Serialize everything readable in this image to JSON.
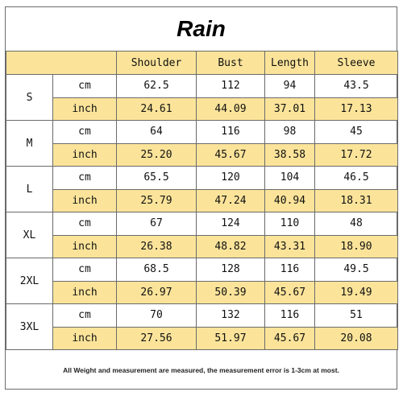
{
  "title": "Rain",
  "headers": [
    "Shoulder",
    "Bust",
    "Length",
    "Sleeve"
  ],
  "rows": [
    {
      "size": "S",
      "cm": [
        "62.5",
        "112",
        "94",
        "43.5"
      ],
      "inch": [
        "24.61",
        "44.09",
        "37.01",
        "17.13"
      ]
    },
    {
      "size": "M",
      "cm": [
        "64",
        "116",
        "98",
        "45"
      ],
      "inch": [
        "25.20",
        "45.67",
        "38.58",
        "17.72"
      ]
    },
    {
      "size": "L",
      "cm": [
        "65.5",
        "120",
        "104",
        "46.5"
      ],
      "inch": [
        "25.79",
        "47.24",
        "40.94",
        "18.31"
      ]
    },
    {
      "size": "XL",
      "cm": [
        "67",
        "124",
        "110",
        "48"
      ],
      "inch": [
        "26.38",
        "48.82",
        "43.31",
        "18.90"
      ]
    },
    {
      "size": "2XL",
      "cm": [
        "68.5",
        "128",
        "116",
        "49.5"
      ],
      "inch": [
        "26.97",
        "50.39",
        "45.67",
        "19.49"
      ]
    },
    {
      "size": "3XL",
      "cm": [
        "70",
        "132",
        "116",
        "51"
      ],
      "inch": [
        "27.56",
        "51.97",
        "45.67",
        "20.08"
      ]
    }
  ],
  "unit_labels": {
    "cm": "cm",
    "inch": "inch"
  },
  "note": "All Weight and measurement are measured, the measurement error is 1-3cm at most.",
  "colors": {
    "header_fill": "#fbe49a",
    "border": "#6a6a6a"
  }
}
